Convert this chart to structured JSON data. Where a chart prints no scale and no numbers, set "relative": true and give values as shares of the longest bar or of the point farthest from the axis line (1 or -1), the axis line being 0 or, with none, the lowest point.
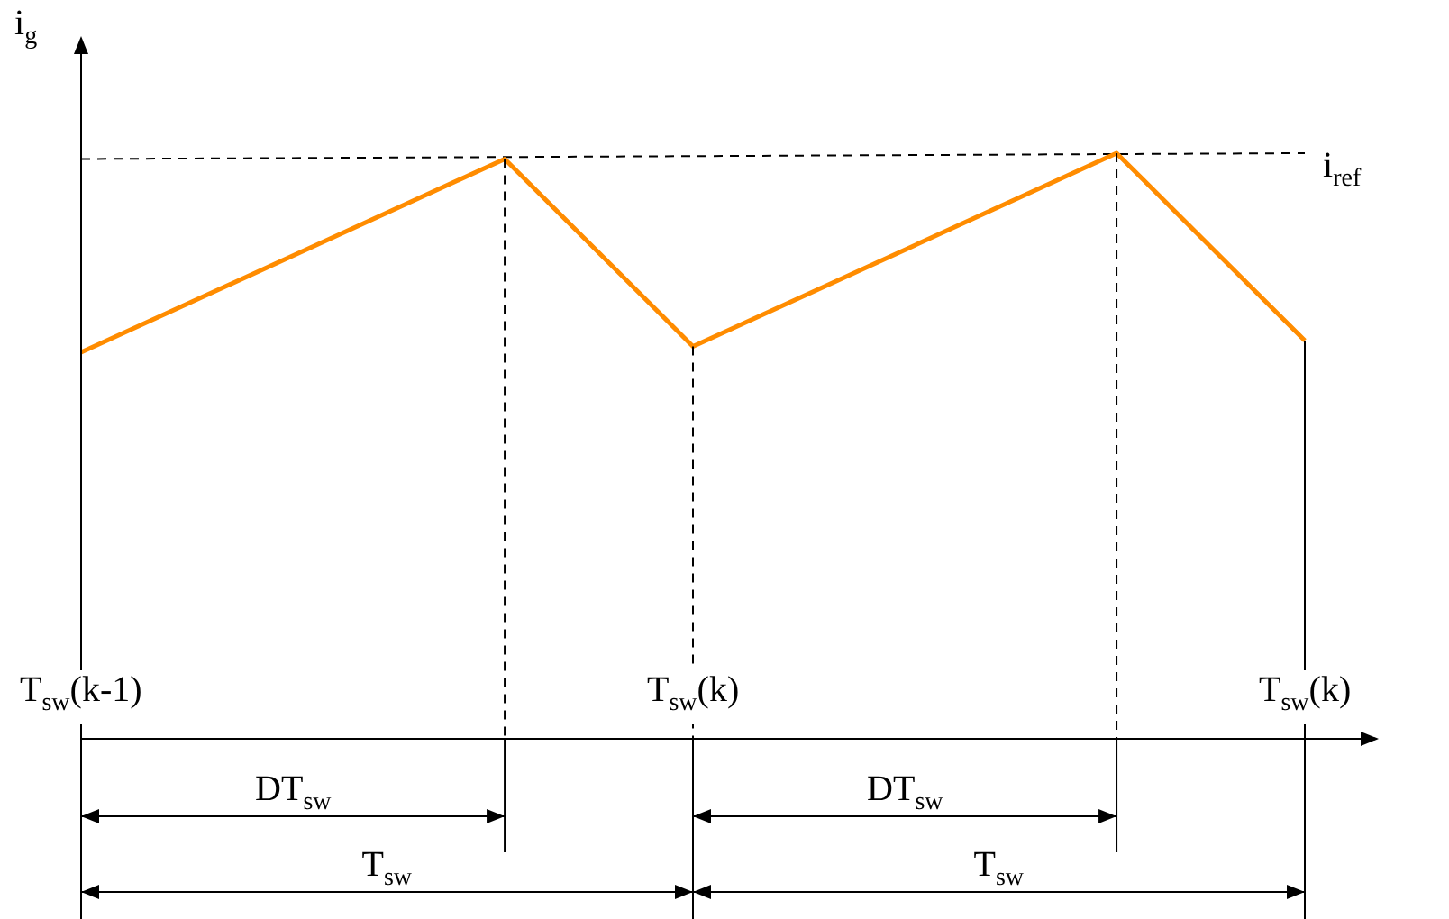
{
  "chart_data": {
    "type": "line",
    "relative": true,
    "ylabel": "i$_{g}$",
    "categories": [
      "T$_{sw}$(k-1)",
      null,
      null,
      null,
      null,
      null,
      null,
      null,
      null,
      null,
      null,
      null,
      null,
      "T$_{sw}$(k)",
      null,
      null,
      null,
      null,
      null,
      null,
      null,
      null,
      null,
      null,
      null,
      null,
      "T$_{sw}$(k)"
    ],
    "series": [
      {
        "color": "#ff8c00",
        "values": [
          0.66,
          null,
          null,
          null,
          null,
          null,
          null,
          null,
          null,
          0.99,
          null,
          null,
          null,
          0.67,
          null,
          null,
          null,
          null,
          null,
          null,
          null,
          null,
          1,
          null,
          null,
          null,
          0.68
        ]
      },
      {
        "name": "i$_{ref}$",
        "color": "#000000",
        "line_style": "dashed",
        "values": [
          0.99,
          null,
          null,
          null,
          null,
          null,
          null,
          null,
          null,
          null,
          null,
          null,
          null,
          null,
          null,
          null,
          null,
          null,
          null,
          null,
          null,
          null,
          null,
          null,
          null,
          null,
          1
        ]
      }
    ],
    "annotations": [
      "DT$_{sw}$",
      "DT$_{sw}$",
      "T$_{sw}$",
      "T$_{sw}$"
    ],
    "legend": false,
    "marker": "none",
    "line_style": "solid"
  }
}
